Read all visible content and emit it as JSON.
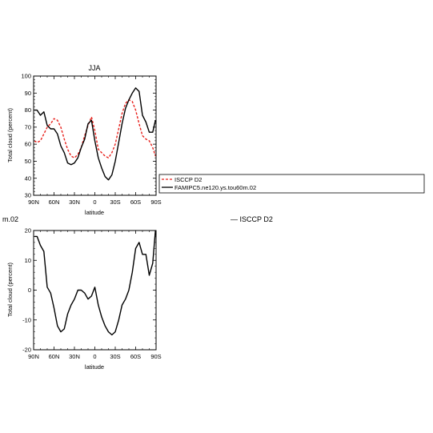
{
  "chart_data": [
    {
      "type": "line",
      "title": "JJA",
      "xlabel": "latitude",
      "ylabel": "Total cloud (percent)",
      "xlim": [
        90,
        -90
      ],
      "ylim": [
        30,
        100
      ],
      "xticks": [
        90,
        60,
        30,
        0,
        -30,
        -60,
        -90
      ],
      "xtick_labels": [
        "90N",
        "60N",
        "30N",
        "0",
        "30S",
        "60S",
        "90S"
      ],
      "yticks": [
        30,
        40,
        50,
        60,
        70,
        80,
        90,
        100
      ],
      "ytick_labels": [
        "30",
        "40",
        "50",
        "60",
        "70",
        "80",
        "90",
        "100"
      ],
      "legend": {
        "placement": "right",
        "entries": [
          "ISCCP D2",
          "FAMIPC5.ne120.ys.tou60m.02"
        ]
      },
      "series": [
        {
          "name": "ISCCP D2",
          "color": "#e8211c",
          "style": "dashed",
          "x": [
            89,
            85,
            80,
            75,
            70,
            65,
            60,
            55,
            50,
            45,
            40,
            35,
            30,
            25,
            20,
            15,
            10,
            5,
            0,
            -5,
            -10,
            -15,
            -20,
            -25,
            -30,
            -35,
            -40,
            -45,
            -50,
            -55,
            -60,
            -65,
            -70,
            -75,
            -80,
            -85,
            -89
          ],
          "y": [
            62,
            61,
            62,
            66,
            70,
            72,
            75,
            74,
            70,
            63,
            57,
            53,
            52,
            54,
            58,
            65,
            71,
            76,
            68,
            57,
            55,
            53,
            52,
            55,
            60,
            69,
            78,
            84,
            86,
            85,
            80,
            72,
            65,
            63,
            62,
            58,
            53
          ]
        },
        {
          "name": "FAMIPC5.ne120.ys.tou60m.02",
          "color": "#000000",
          "style": "solid",
          "x": [
            89,
            85,
            80,
            75,
            70,
            65,
            60,
            55,
            50,
            45,
            40,
            35,
            30,
            25,
            20,
            15,
            10,
            5,
            0,
            -5,
            -10,
            -15,
            -20,
            -25,
            -30,
            -35,
            -40,
            -45,
            -50,
            -55,
            -60,
            -65,
            -70,
            -75,
            -80,
            -85,
            -89
          ],
          "y": [
            80,
            80,
            77,
            79,
            71,
            69,
            69,
            66,
            59,
            55,
            49,
            48,
            49,
            52,
            58,
            63,
            72,
            74,
            62,
            52,
            46,
            41,
            39,
            42,
            50,
            61,
            72,
            81,
            86,
            90,
            93,
            91,
            77,
            73,
            67,
            67,
            74
          ]
        }
      ]
    },
    {
      "type": "line",
      "title": "",
      "xlabel": "latitude",
      "ylabel": "Total cloud (percent)",
      "xlim": [
        90,
        -90
      ],
      "ylim": [
        -20,
        20
      ],
      "xticks": [
        90,
        60,
        30,
        0,
        -30,
        -60,
        -90
      ],
      "xtick_labels": [
        "90N",
        "60N",
        "30N",
        "0",
        "30S",
        "60S",
        "90S"
      ],
      "yticks": [
        -20,
        -10,
        0,
        10,
        20
      ],
      "ytick_labels": [
        "-20",
        "-10",
        "0",
        "10",
        "20"
      ],
      "series": [
        {
          "color": "#000000",
          "style": "solid",
          "x": [
            89,
            85,
            80,
            75,
            70,
            65,
            60,
            55,
            50,
            45,
            40,
            35,
            30,
            25,
            20,
            15,
            10,
            5,
            0,
            -5,
            -10,
            -15,
            -20,
            -25,
            -30,
            -35,
            -40,
            -45,
            -50,
            -55,
            -60,
            -65,
            -70,
            -75,
            -80,
            -85,
            -89
          ],
          "y": [
            18,
            18,
            15,
            13,
            1,
            -1,
            -6,
            -12,
            -14,
            -13,
            -8,
            -5,
            -3,
            0,
            0,
            -1,
            -3,
            -2,
            1,
            -5,
            -9,
            -12,
            -14,
            -15,
            -14,
            -10,
            -5,
            -3,
            0,
            6,
            14,
            16,
            12,
            12,
            5,
            9,
            20
          ]
        }
      ]
    }
  ],
  "fragments": {
    "left_cut_label": "m.02",
    "right_legend_label": "— ISCCP D2"
  }
}
